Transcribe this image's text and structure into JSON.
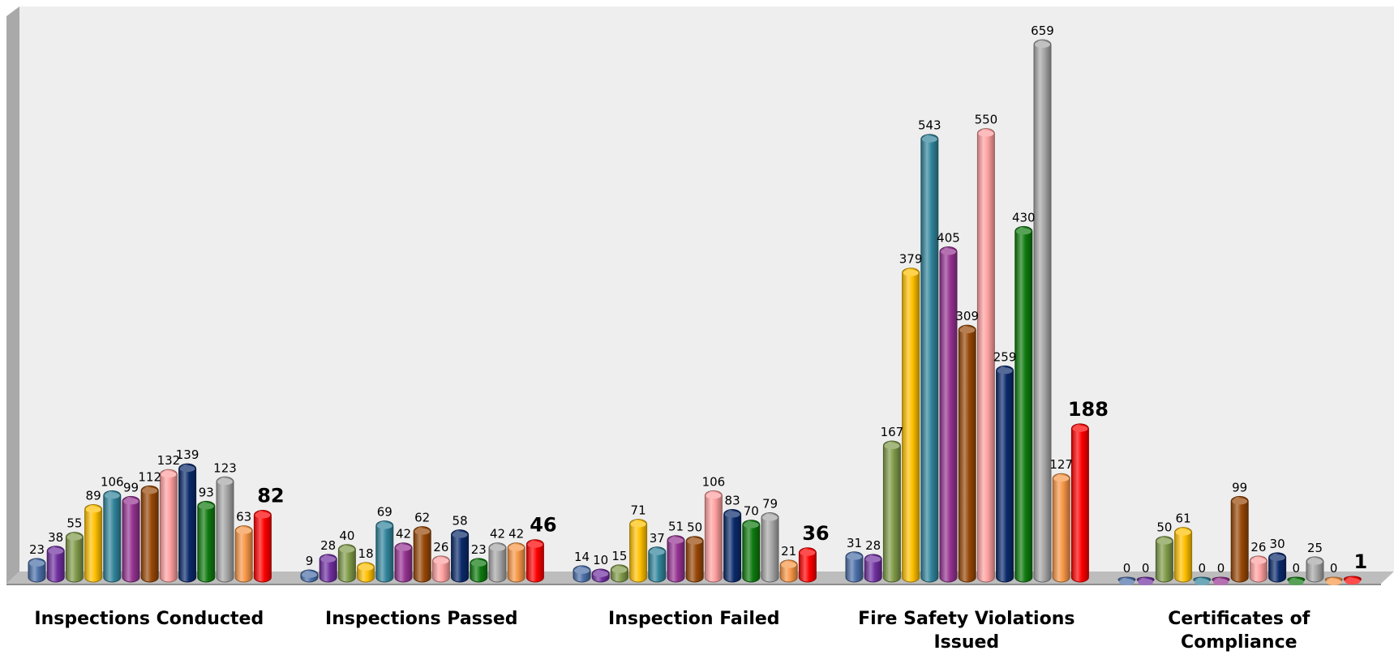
{
  "chart_data": {
    "type": "bar",
    "title": "",
    "xlabel": "",
    "ylabel": "",
    "ylim": [
      0,
      700
    ],
    "grid": false,
    "legend": "none",
    "categories": [
      [
        "Inspections Conducted"
      ],
      [
        "Inspections Passed"
      ],
      [
        "Inspection Failed"
      ],
      [
        "Fire Safety Violations",
        "Issued"
      ],
      [
        "Certificates of",
        "Compliance"
      ]
    ],
    "series_colors": [
      "#4a6ea8",
      "#7030a0",
      "#7f9a48",
      "#ffc000",
      "#31849b",
      "#953291",
      "#984807",
      "#ff9f9f",
      "#0b2a6b",
      "#0f7a0f",
      "#a6a6a6",
      "#f79646",
      "#ff0000"
    ],
    "bold_series_index": 12,
    "series": [
      {
        "values": [
          23,
          9,
          14,
          31,
          0
        ]
      },
      {
        "values": [
          38,
          28,
          10,
          28,
          0
        ]
      },
      {
        "values": [
          55,
          40,
          15,
          167,
          50
        ]
      },
      {
        "values": [
          89,
          18,
          71,
          379,
          61
        ]
      },
      {
        "values": [
          106,
          69,
          37,
          543,
          0
        ]
      },
      {
        "values": [
          99,
          42,
          51,
          405,
          0
        ]
      },
      {
        "values": [
          112,
          62,
          50,
          309,
          99
        ]
      },
      {
        "values": [
          132,
          26,
          106,
          550,
          26
        ]
      },
      {
        "values": [
          139,
          58,
          83,
          259,
          30
        ]
      },
      {
        "values": [
          93,
          23,
          70,
          430,
          0
        ]
      },
      {
        "values": [
          123,
          42,
          79,
          659,
          25
        ]
      },
      {
        "values": [
          63,
          42,
          21,
          127,
          0
        ]
      },
      {
        "values": [
          82,
          46,
          36,
          188,
          1
        ]
      }
    ]
  }
}
